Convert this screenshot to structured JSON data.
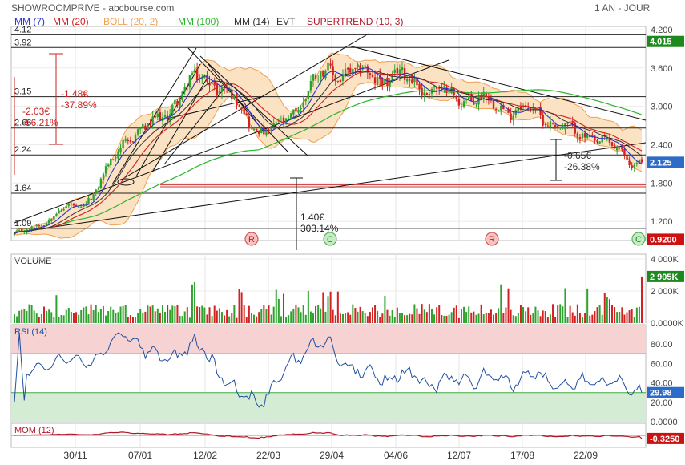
{
  "header": {
    "left": "SHOWROOMPRIVE - abcbourse.com",
    "right": "1 AN - JOUR"
  },
  "legend": [
    {
      "label": "MM (7)",
      "color": "#2e35c8"
    },
    {
      "label": "MM (20)",
      "color": "#d11f1f"
    },
    {
      "label": "BOLL (20, 2)",
      "color": "#f0a050"
    },
    {
      "label": "MM (100)",
      "color": "#2bb52b"
    },
    {
      "label": "MM (14)",
      "color": "#333333"
    },
    {
      "label": "EVT",
      "color": "#333333"
    },
    {
      "label": "SUPERTREND (10, 3)",
      "color": "#b0182a"
    }
  ],
  "colors": {
    "up": "#2fa12f",
    "down": "#d32222",
    "boll_fill": "#fbe2c3",
    "rsi_line": "#2050a0",
    "rsi_overbought_fill": "#f6d2d2",
    "rsi_oversold_fill": "#d3ecd3",
    "last_price_badge": "#2c6bc8",
    "green_badge": "#1e8a1e",
    "red_badge": "#cc1111"
  },
  "price_axis": {
    "ticks": [
      "4.200",
      "3.600",
      "3.000",
      "2.400",
      "1.800",
      "1.200"
    ],
    "badges": [
      {
        "text": "4.015",
        "kind": "green"
      },
      {
        "text": "2.125",
        "kind": "blue"
      },
      {
        "text": "0.9200",
        "kind": "red"
      }
    ]
  },
  "levels": [
    "4.12",
    "3.92",
    "3.15",
    "2.66",
    "2.24",
    "1.64",
    "1.09"
  ],
  "annotations": [
    {
      "text": "-1.48€"
    },
    {
      "text": "-37.89%"
    },
    {
      "text": "-2.03€"
    },
    {
      "text": "-56.21%"
    },
    {
      "text": "-0.65€"
    },
    {
      "text": "-26.38%"
    },
    {
      "text": "1.40€"
    },
    {
      "text": "303.14%"
    }
  ],
  "events": [
    "R",
    "C",
    "R",
    "C"
  ],
  "volume": {
    "title": "VOLUME",
    "ticks": [
      "4 000K",
      "2 000K",
      "0.0000K"
    ],
    "badge": "2 905K"
  },
  "rsi": {
    "title": "RSI (14)",
    "ticks": [
      "80.00",
      "60.00",
      "40.00",
      "20.00",
      "0.0000"
    ],
    "badge": "29.98"
  },
  "mom": {
    "title": "MOM (12)",
    "badge": "-0.3250"
  },
  "x_labels": [
    "30/11",
    "07/01",
    "12/02",
    "22/03",
    "29/04",
    "04/06",
    "12/07",
    "17/08",
    "22/09"
  ],
  "chart_data": [
    {
      "type": "candlestick",
      "title": "SHOWROOMPRIVE",
      "x_labels": [
        "30/11",
        "07/01",
        "12/02",
        "22/03",
        "29/04",
        "04/06",
        "12/07",
        "17/08",
        "22/09"
      ],
      "ylim": [
        0.9,
        4.25
      ],
      "y_ticks": [
        4.2,
        3.6,
        3.0,
        2.4,
        1.8,
        1.2
      ],
      "close_anchors": [
        {
          "x": "start",
          "y": 1.0
        },
        {
          "x": "30/11",
          "y": 1.42
        },
        {
          "x": "07/01",
          "y": 2.62
        },
        {
          "x": "12/02",
          "y": 3.45
        },
        {
          "x": "22/03",
          "y": 2.6
        },
        {
          "x": "29/04",
          "y": 3.55
        },
        {
          "x": "04/06",
          "y": 3.45
        },
        {
          "x": "12/07",
          "y": 3.15
        },
        {
          "x": "17/08",
          "y": 2.95
        },
        {
          "x": "22/09",
          "y": 2.55
        },
        {
          "x": "end",
          "y": 2.125
        }
      ],
      "last": 2.125
    },
    {
      "type": "bar",
      "title": "VOLUME",
      "ylim": [
        0,
        4000
      ],
      "unit": "K",
      "last": 2905
    },
    {
      "type": "line",
      "title": "RSI (14)",
      "ylim": [
        0,
        100
      ],
      "y_ticks": [
        80,
        60,
        40,
        20,
        0
      ],
      "bands": {
        "overbought": 70,
        "oversold": 30
      },
      "last": 29.98
    },
    {
      "type": "line",
      "title": "MOM (12)",
      "last": -0.325
    }
  ]
}
